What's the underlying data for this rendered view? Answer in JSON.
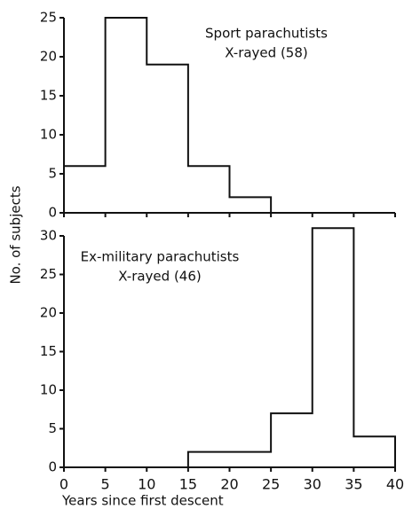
{
  "chart_data": [
    {
      "type": "histogram",
      "annotations": [
        "Sport parachutists",
        "X-rayed (58)"
      ],
      "ylabel": "No. of subjects",
      "bins": [
        0,
        5,
        10,
        15,
        20,
        25,
        30,
        35,
        40
      ],
      "counts": [
        6,
        25,
        19,
        6,
        2,
        0,
        0,
        0
      ],
      "xlim": [
        0,
        40
      ],
      "xticks": [
        0,
        5,
        10,
        15,
        20,
        25,
        30,
        35,
        40
      ],
      "ylim": [
        0,
        25
      ],
      "yticks": [
        0,
        5,
        10,
        15,
        20,
        25
      ],
      "color": "#111111"
    },
    {
      "type": "histogram",
      "annotations": [
        "Ex-military parachutists",
        "X-rayed (46)"
      ],
      "xlabel": "Years since first descent",
      "bins": [
        0,
        5,
        10,
        15,
        20,
        25,
        30,
        35,
        40
      ],
      "counts": [
        0,
        0,
        0,
        2,
        2,
        7,
        31,
        4
      ],
      "xlim": [
        0,
        40
      ],
      "xticks": [
        0,
        5,
        10,
        15,
        20,
        25,
        30,
        35,
        40
      ],
      "ylim": [
        0,
        30
      ],
      "yticks": [
        0,
        5,
        10,
        15,
        20,
        25,
        30
      ],
      "color": "#111111"
    }
  ]
}
